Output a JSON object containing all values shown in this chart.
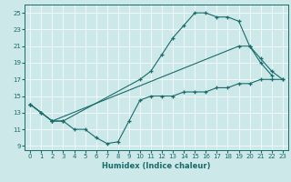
{
  "xlabel": "Humidex (Indice chaleur)",
  "xlim": [
    -0.5,
    23.5
  ],
  "ylim": [
    8.5,
    26
  ],
  "xticks": [
    0,
    1,
    2,
    3,
    4,
    5,
    6,
    7,
    8,
    9,
    10,
    11,
    12,
    13,
    14,
    15,
    16,
    17,
    18,
    19,
    20,
    21,
    22,
    23
  ],
  "yticks": [
    9,
    11,
    13,
    15,
    17,
    19,
    21,
    23,
    25
  ],
  "background_color": "#cce8e8",
  "line_color": "#1a6b6b",
  "series": [
    {
      "x": [
        0,
        1,
        2,
        3,
        4,
        5,
        6,
        7,
        8,
        9,
        10,
        11,
        12,
        13,
        14,
        15,
        16,
        17,
        18,
        19,
        20,
        21,
        22,
        23
      ],
      "y": [
        14,
        13,
        12,
        12,
        11,
        11,
        10,
        9.3,
        9.5,
        12,
        14.5,
        15,
        15,
        15,
        15.5,
        15.5,
        15.5,
        16,
        16,
        16.5,
        16.5,
        17,
        17,
        17
      ]
    },
    {
      "x": [
        0,
        1,
        2,
        3,
        10,
        11,
        12,
        13,
        14,
        15,
        16,
        17,
        18,
        19,
        20,
        21,
        22
      ],
      "y": [
        14,
        13,
        12,
        12,
        17,
        18,
        20,
        22,
        23.5,
        25,
        25,
        24.5,
        24.5,
        24,
        21,
        19,
        17.5
      ]
    },
    {
      "x": [
        0,
        2,
        19,
        20,
        21,
        22,
        23
      ],
      "y": [
        14,
        12,
        21,
        21,
        19.5,
        18,
        17
      ]
    }
  ]
}
